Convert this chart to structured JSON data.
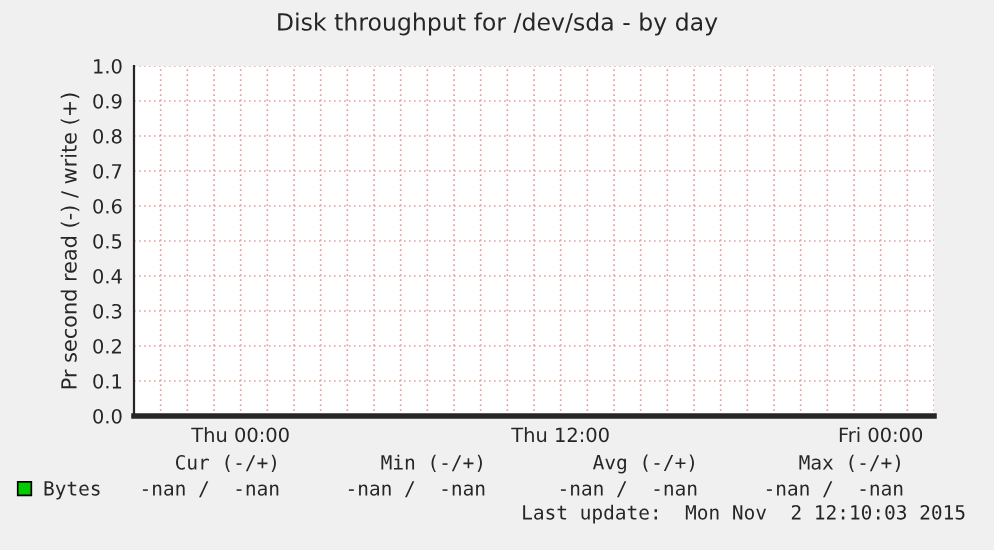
{
  "chart_data": {
    "type": "line",
    "title": "Disk throughput for /dev/sda - by day",
    "ylabel": "Pr second read (-) / write (+)",
    "categories": [
      null,
      null,
      null,
      null,
      "Thu 00:00",
      null,
      null,
      null,
      null,
      null,
      null,
      null,
      null,
      null,
      null,
      null,
      "Thu 12:00",
      null,
      null,
      null,
      null,
      null,
      null,
      null,
      null,
      null,
      null,
      null,
      "Fri 00:00",
      null,
      null
    ],
    "series": [
      {
        "name": "Bytes",
        "color": "#00cc00",
        "values": [
          null,
          null,
          null,
          null,
          null,
          null,
          null,
          null,
          null,
          null,
          null,
          null,
          null,
          null,
          null,
          null,
          null,
          null,
          null,
          null,
          null,
          null,
          null,
          null,
          null,
          null,
          null,
          null,
          null,
          null,
          null
        ]
      }
    ],
    "ylim": [
      0,
      1
    ],
    "yticks": [
      {
        "value": 0,
        "label": "0.0"
      },
      {
        "value": 0.1,
        "label": "0.1"
      },
      {
        "value": 0.2,
        "label": "0.2"
      },
      {
        "value": 0.3,
        "label": "0.3"
      },
      {
        "value": 0.4,
        "label": "0.4"
      },
      {
        "value": 0.5,
        "label": "0.5"
      },
      {
        "value": 0.6,
        "label": "0.6"
      },
      {
        "value": 0.7,
        "label": "0.7"
      },
      {
        "value": 0.8,
        "label": "0.8"
      },
      {
        "value": 0.9,
        "label": "0.9"
      },
      {
        "value": 1,
        "label": "1.0"
      }
    ],
    "grid": true,
    "legend": "bottom left",
    "annotations": [
      "Cur (-/+)",
      "Min (-/+)",
      "Avg (-/+)",
      "Max (-/+)",
      "-nan /  -nan",
      "-nan /  -nan",
      "-nan /  -nan",
      "-nan /  -nan",
      "Last update:  Mon Nov  2 12:10:03 2015"
    ]
  }
}
